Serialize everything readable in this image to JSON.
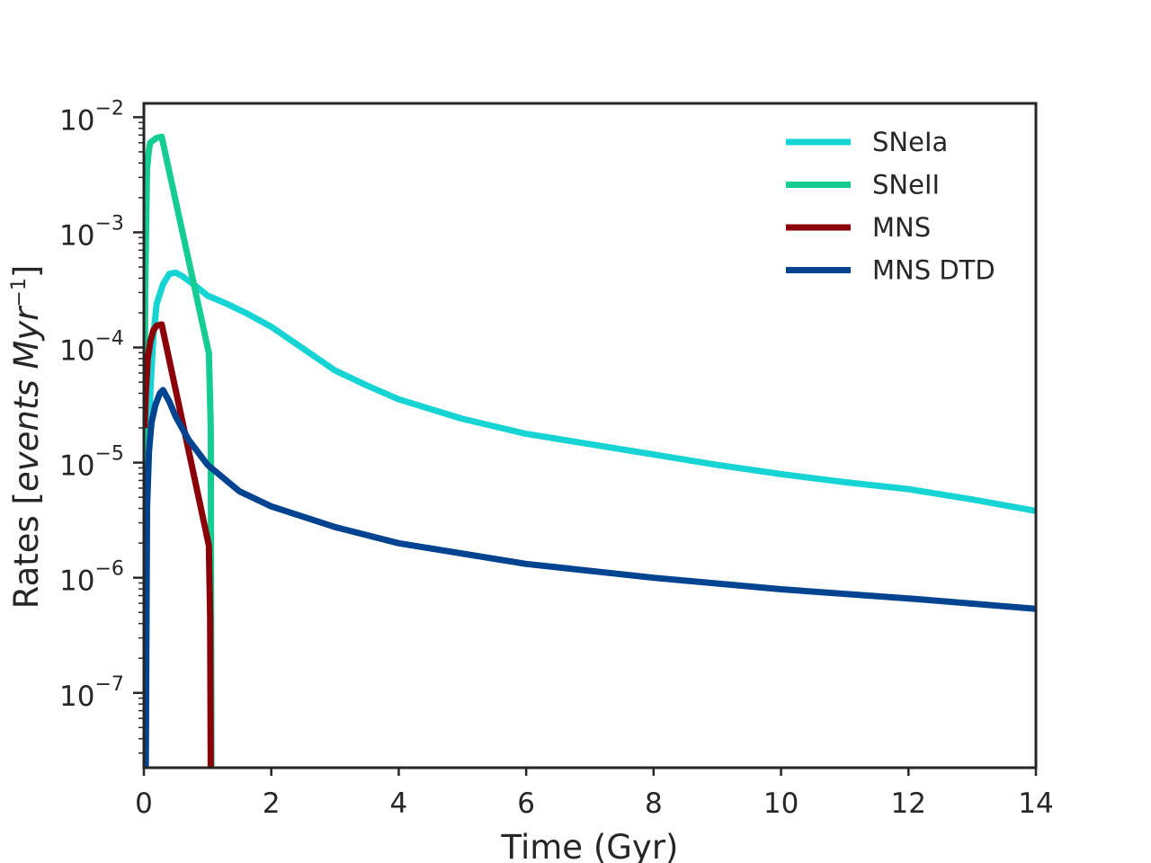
{
  "chart_data": {
    "type": "line",
    "title": "",
    "xlabel": "Time (Gyr)",
    "ylabel_prefix": "Rates [",
    "ylabel_math": "events Myr",
    "ylabel_exp": "−1",
    "ylabel_suffix": "]",
    "xlim": [
      0,
      14
    ],
    "ylim_log10": [
      -7.65,
      -1.88
    ],
    "x_ticks": [
      {
        "value": 0,
        "label": "0"
      },
      {
        "value": 2,
        "label": "2"
      },
      {
        "value": 4,
        "label": "4"
      },
      {
        "value": 6,
        "label": "6"
      },
      {
        "value": 8,
        "label": "8"
      },
      {
        "value": 10,
        "label": "10"
      },
      {
        "value": 12,
        "label": "12"
      },
      {
        "value": 14,
        "label": "14"
      }
    ],
    "y_ticks": [
      {
        "exp": -2,
        "base": "10",
        "sup": "−2"
      },
      {
        "exp": -3,
        "base": "10",
        "sup": "−3"
      },
      {
        "exp": -4,
        "base": "10",
        "sup": "−4"
      },
      {
        "exp": -5,
        "base": "10",
        "sup": "−5"
      },
      {
        "exp": -6,
        "base": "10",
        "sup": "−6"
      },
      {
        "exp": -7,
        "base": "10",
        "sup": "−7"
      }
    ],
    "legend_position": "top-right",
    "series": [
      {
        "name": "SNeIa",
        "color": "#17d4d4",
        "x": [
          0.02,
          0.05,
          0.1,
          0.15,
          0.2,
          0.3,
          0.4,
          0.5,
          0.6,
          0.8,
          1.0,
          1.3,
          1.6,
          1.8,
          2.0,
          2.5,
          3.0,
          3.5,
          4.0,
          5.0,
          6.0,
          7.0,
          8.0,
          9.0,
          10.0,
          11.0,
          12.0,
          13.0,
          14.0
        ],
        "y_log10": [
          -7.7,
          -5.3,
          -4.4,
          -3.9,
          -3.62,
          -3.45,
          -3.36,
          -3.35,
          -3.38,
          -3.46,
          -3.55,
          -3.62,
          -3.7,
          -3.76,
          -3.82,
          -4.01,
          -4.2,
          -4.33,
          -4.45,
          -4.62,
          -4.75,
          -4.84,
          -4.93,
          -5.02,
          -5.1,
          -5.17,
          -5.23,
          -5.32,
          -5.42
        ]
      },
      {
        "name": "SNeII",
        "color": "#15cc92",
        "x": [
          0.0,
          0.02,
          0.05,
          0.08,
          0.1,
          0.15,
          0.2,
          0.28,
          1.02,
          1.05,
          1.06
        ],
        "y_log10": [
          -7.7,
          -3.5,
          -2.45,
          -2.28,
          -2.22,
          -2.2,
          -2.18,
          -2.17,
          -4.05,
          -4.7,
          -7.7
        ]
      },
      {
        "name": "MNS",
        "color": "#8b0008",
        "x": [
          0.01,
          0.03,
          0.06,
          0.1,
          0.15,
          0.2,
          0.28,
          1.02,
          1.04,
          1.05
        ],
        "y_log10": [
          -4.7,
          -4.4,
          -4.1,
          -3.95,
          -3.85,
          -3.81,
          -3.8,
          -5.72,
          -6.35,
          -7.7
        ]
      },
      {
        "name": "MNS DTD",
        "color": "#004391",
        "x": [
          0.03,
          0.05,
          0.08,
          0.12,
          0.18,
          0.25,
          0.3,
          0.4,
          0.5,
          0.7,
          1.0,
          1.5,
          2.0,
          3.0,
          4.0,
          6.0,
          8.0,
          10.0,
          12.0,
          14.0
        ],
        "y_log10": [
          -7.7,
          -5.4,
          -4.9,
          -4.65,
          -4.5,
          -4.4,
          -4.37,
          -4.47,
          -4.6,
          -4.8,
          -5.02,
          -5.25,
          -5.38,
          -5.56,
          -5.7,
          -5.88,
          -6.0,
          -6.1,
          -6.18,
          -6.27
        ]
      }
    ]
  }
}
